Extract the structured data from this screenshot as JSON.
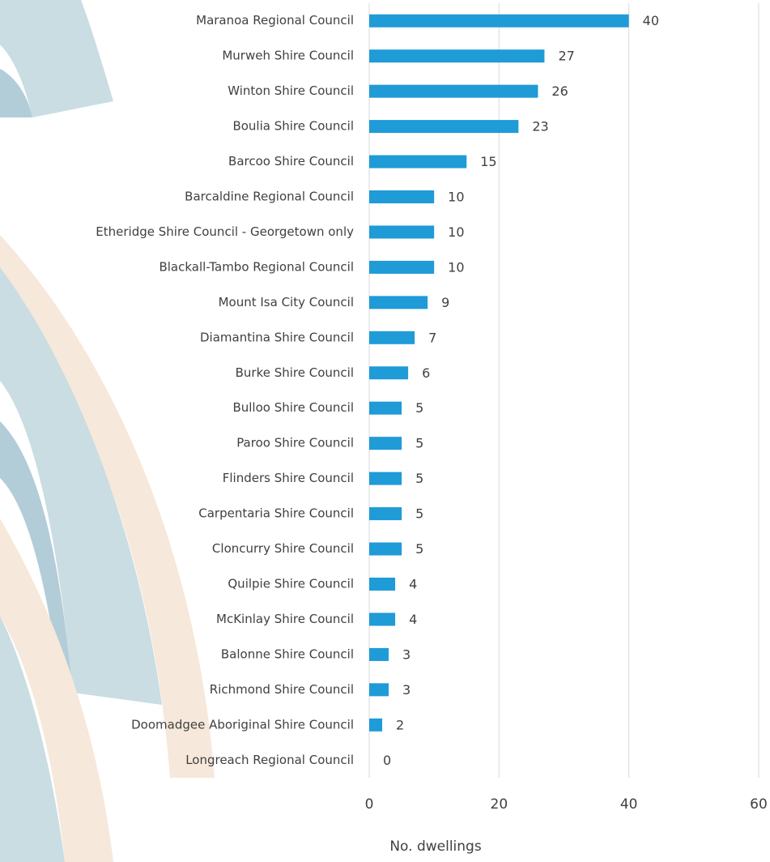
{
  "chart_data": {
    "type": "bar",
    "orientation": "horizontal",
    "categories": [
      "Maranoa Regional Council",
      "Murweh Shire Council",
      "Winton Shire Council",
      "Boulia Shire Council",
      "Barcoo Shire Council",
      "Barcaldine Regional Council",
      "Etheridge Shire Council - Georgetown only",
      "Blackall-Tambo Regional Council",
      "Mount Isa City Council",
      "Diamantina Shire Council",
      "Burke Shire Council",
      "Bulloo Shire Council",
      "Paroo Shire Council",
      "Flinders Shire Council",
      "Carpentaria Shire Council",
      "Cloncurry Shire Council",
      "Quilpie Shire Council",
      "McKinlay Shire Council",
      "Balonne Shire Council",
      "Richmond Shire Council",
      "Doomadgee Aboriginal Shire Council",
      "Longreach Regional Council"
    ],
    "values": [
      40,
      27,
      26,
      23,
      15,
      10,
      10,
      10,
      9,
      7,
      6,
      5,
      5,
      5,
      5,
      5,
      4,
      4,
      3,
      3,
      2,
      0
    ],
    "color": "#1f9bd7",
    "xlim": [
      0,
      60
    ],
    "xticks": [
      0,
      20,
      40,
      60
    ],
    "grid": true,
    "x_label": "No. dwellings"
  }
}
